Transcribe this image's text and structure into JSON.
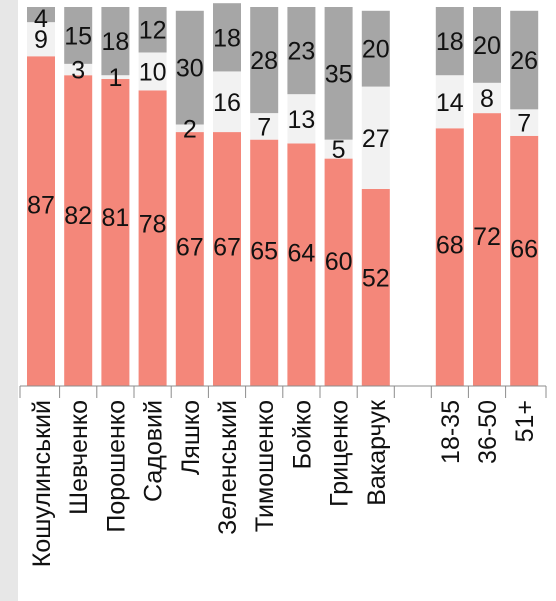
{
  "chart_data": {
    "type": "bar",
    "stacked": true,
    "orientation": "vertical",
    "groups": [
      {
        "categories": [
          "Кошулинський",
          "Шевченко",
          "Порошенко",
          "Садовий",
          "Ляшко",
          "Зеленський",
          "Тимошенко",
          "Бойко",
          "Гриценко",
          "Вакарчук"
        ]
      },
      {
        "categories": [
          "18-35",
          "36-50",
          "51+"
        ]
      }
    ],
    "categories": [
      "Кошулинський",
      "Шевченко",
      "Порошенко",
      "Садовий",
      "Ляшко",
      "Зеленський",
      "Тимошенко",
      "Бойко",
      "Гриценко",
      "Вакарчук",
      "18-35",
      "36-50",
      "51+"
    ],
    "series": [
      {
        "values": [
          87,
          82,
          81,
          78,
          67,
          67,
          65,
          64,
          60,
          52,
          68,
          72,
          66
        ]
      },
      {
        "values": [
          9,
          3,
          1,
          10,
          2,
          16,
          7,
          13,
          5,
          27,
          14,
          8,
          7
        ]
      },
      {
        "values": [
          4,
          15,
          18,
          12,
          30,
          18,
          28,
          23,
          35,
          20,
          18,
          20,
          26
        ]
      }
    ],
    "ylim": [
      0,
      100
    ],
    "grid": false,
    "legend": "none",
    "colors": [
      "#f4877a",
      "#f2f2f2",
      "#a6a6a6"
    ],
    "axis_color": "#8c8c8c"
  }
}
